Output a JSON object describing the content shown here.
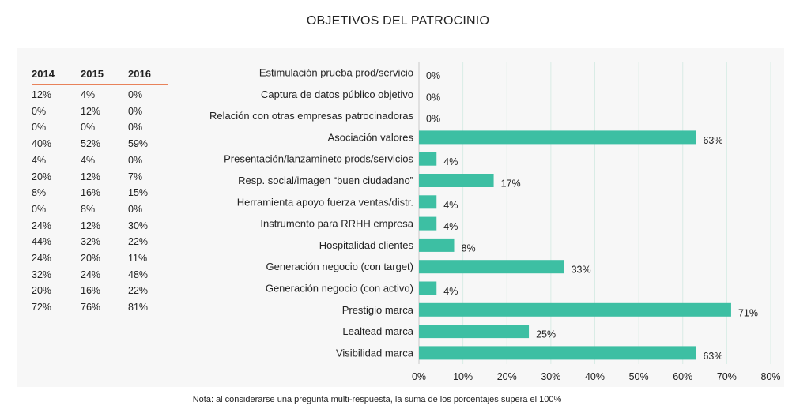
{
  "title": "OBJETIVOS DEL PATROCINIO",
  "table": {
    "headers": [
      "2014",
      "2015",
      "2016"
    ],
    "rows": [
      [
        "12%",
        "4%",
        "0%"
      ],
      [
        "0%",
        "12%",
        "0%"
      ],
      [
        "0%",
        "0%",
        "0%"
      ],
      [
        "40%",
        "52%",
        "59%"
      ],
      [
        "4%",
        "4%",
        "0%"
      ],
      [
        "20%",
        "12%",
        "7%"
      ],
      [
        "8%",
        "16%",
        "15%"
      ],
      [
        "0%",
        "8%",
        "0%"
      ],
      [
        "24%",
        "12%",
        "30%"
      ],
      [
        "44%",
        "32%",
        "22%"
      ],
      [
        "24%",
        "20%",
        "11%"
      ],
      [
        "32%",
        "24%",
        "48%"
      ],
      [
        "20%",
        "16%",
        "22%"
      ],
      [
        "72%",
        "76%",
        "81%"
      ]
    ]
  },
  "chart_data": {
    "type": "bar",
    "orientation": "horizontal",
    "title": "OBJETIVOS DEL PATROCINIO",
    "categories": [
      "Estimulación prueba prod/servicio",
      "Captura de datos público objetivo",
      "Relación con otras empresas patrocinadoras",
      "Asociación valores",
      "Presentación/lanzamineto prods/servicios",
      "Resp. social/imagen “buen ciudadano”",
      "Herramienta apoyo fuerza ventas/distr.",
      "Instrumento para RRHH empresa",
      "Hospitalidad clientes",
      "Generación negocio (con target)",
      "Generación negocio (con activo)",
      "Prestigio marca",
      "Lealtead marca",
      "Visibilidad marca"
    ],
    "values": [
      0,
      0,
      0,
      63,
      4,
      17,
      4,
      4,
      8,
      33,
      4,
      71,
      25,
      63
    ],
    "value_labels": [
      "0%",
      "0%",
      "0%",
      "63%",
      "4%",
      "17%",
      "4%",
      "4%",
      "8%",
      "33%",
      "4%",
      "71%",
      "25%",
      "63%"
    ],
    "xlim": [
      0,
      80
    ],
    "xticks": [
      "0%",
      "10%",
      "20%",
      "30%",
      "40%",
      "50%",
      "60%",
      "70%",
      "80%"
    ],
    "grid": true,
    "bar_color": "#3dbfa3",
    "grid_color": "#d9ece6"
  },
  "note": "Nota: al considerarse una pregunta multi-respuesta, la suma de los porcentajes supera el 100%"
}
